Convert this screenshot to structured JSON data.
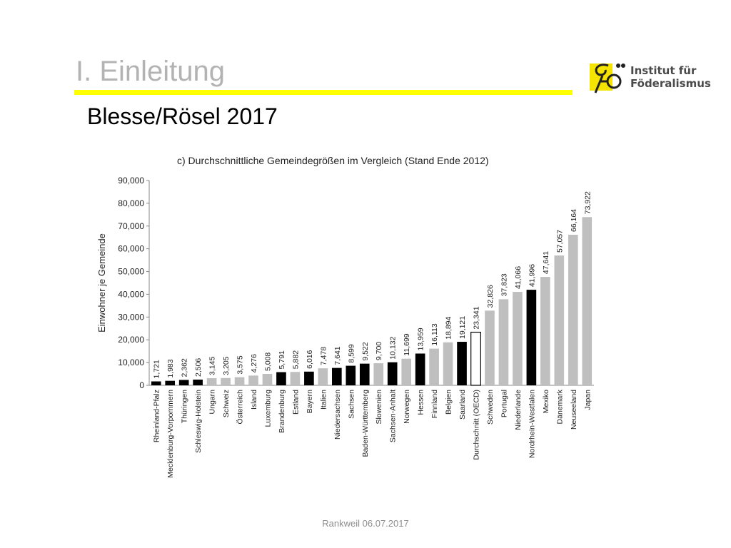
{
  "slide": {
    "title": "I. Einleitung",
    "subtitle": "Blesse/Rösel 2017",
    "footer": "Rankweil 06.07.2017",
    "accent_color": "#ffff00"
  },
  "logo": {
    "line1": "Institut für",
    "line2": "Föderalismus",
    "mark_color": "#f5e400"
  },
  "chart_data": {
    "type": "bar",
    "title": "c) Durchschnittliche Gemeindegrößen im Vergleich (Stand Ende 2012)",
    "xlabel": "",
    "ylabel": "Einwohner je Gemeinde",
    "ylim": [
      0,
      90000
    ],
    "yticks": [
      0,
      10000,
      20000,
      30000,
      40000,
      50000,
      60000,
      70000,
      80000,
      90000
    ],
    "ytick_labels": [
      "0",
      "10,000",
      "20,000",
      "30,000",
      "40,000",
      "50,000",
      "60,000",
      "70,000",
      "80,000",
      "90,000"
    ],
    "grid": false,
    "colors": {
      "german_state": "#000000",
      "country": "#bfbfbf",
      "average_fill": "#ffffff"
    },
    "categories": [
      "Rheinland-Pfalz",
      "Mecklenburg-Vorpommern",
      "Thüringen",
      "Schleswig-Holstein",
      "Ungarn",
      "Schweiz",
      "Österreich",
      "Island",
      "Luxemburg",
      "Brandenburg",
      "Estland",
      "Bayern",
      "Italien",
      "Niedersachsen",
      "Sachsen",
      "Baden-Württemberg",
      "Slowenien",
      "Sachsen-Anhalt",
      "Norwegen",
      "Hessen",
      "Finnland",
      "Belgien",
      "Saarland",
      "Durchschnitt (OECD)",
      "Schweden",
      "Portugal",
      "Niederlande",
      "Nordrhein-Westfalen",
      "Mexiko",
      "Dänemark",
      "Neuseeland",
      "Japan"
    ],
    "values": [
      1721,
      1983,
      2362,
      2506,
      3145,
      3205,
      3575,
      4276,
      5008,
      5791,
      5882,
      6016,
      7478,
      7641,
      8599,
      9522,
      9700,
      10132,
      11699,
      13959,
      16113,
      18894,
      19121,
      23341,
      32826,
      37823,
      41066,
      41996,
      47641,
      57057,
      66164,
      73922
    ],
    "value_labels": [
      "1,721",
      "1,983",
      "2,362",
      "2,506",
      "3,145",
      "3,205",
      "3,575",
      "4,276",
      "5,008",
      "5,791",
      "5,882",
      "6,016",
      "7,478",
      "7,641",
      "8,599",
      "9,522",
      "9,700",
      "10,132",
      "11,699",
      "13,959",
      "16,113",
      "18,894",
      "19,121",
      "23,341",
      "32,826",
      "37,823",
      "41,066",
      "41,996",
      "47,641",
      "57,057",
      "66,164",
      "73,922"
    ],
    "bar_kinds": [
      "german_state",
      "german_state",
      "german_state",
      "german_state",
      "country",
      "country",
      "country",
      "country",
      "country",
      "german_state",
      "country",
      "german_state",
      "country",
      "german_state",
      "german_state",
      "german_state",
      "country",
      "german_state",
      "country",
      "german_state",
      "country",
      "country",
      "german_state",
      "average",
      "country",
      "country",
      "country",
      "german_state",
      "country",
      "country",
      "country",
      "country"
    ]
  }
}
